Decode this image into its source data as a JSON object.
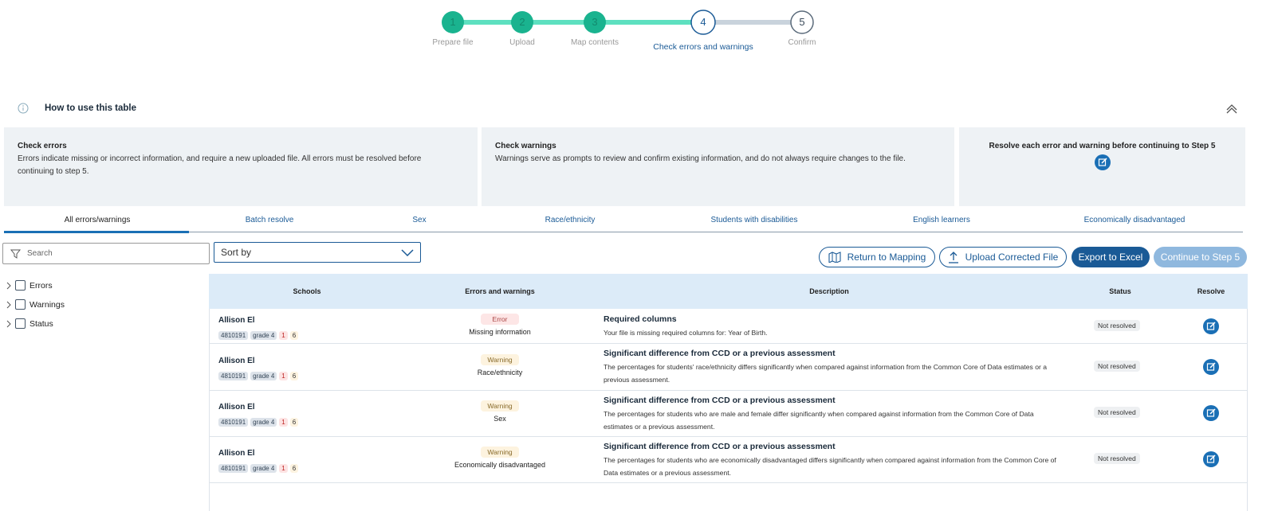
{
  "stepper": {
    "steps": [
      {
        "number": 1,
        "label": "Prepare file"
      },
      {
        "number": 2,
        "label": "Upload"
      },
      {
        "number": 3,
        "label": "Map contents"
      },
      {
        "number": 4,
        "label": "Check errors and warnings"
      },
      {
        "number": 5,
        "label": "Confirm"
      }
    ]
  },
  "help": {
    "title": "How to use this table",
    "cards": [
      {
        "title": "Check errors",
        "text": "Errors indicate missing or incorrect information, and require a new uploaded file. All errors must be resolved before continuing to step 5."
      },
      {
        "title": "Check warnings",
        "text": "Warnings serve as prompts to review and confirm existing information, and do not always require changes to the file."
      },
      {
        "title": "Resolve each error and warning before continuing to Step 5"
      }
    ]
  },
  "tabs": [
    "All errors/warnings",
    "Batch resolve",
    "Sex",
    "Race/ethnicity",
    "Students with disabilities",
    "English learners",
    "Economically disadvantaged"
  ],
  "search_placeholder": "Search",
  "sort_placeholder": "Sort by",
  "buttons": [
    "Return to Mapping",
    "Upload Corrected File",
    "Export to Excel",
    "Continue to Step 5"
  ],
  "filters": [
    "Errors",
    "Warnings",
    "Status"
  ],
  "table": {
    "headers": [
      "Schools",
      "Errors and warnings",
      "Description",
      "Status",
      "Resolve"
    ],
    "rows": [
      {
        "school": "Allison El",
        "id": "4810191",
        "grade": "grade 4",
        "errors": 1,
        "warnings": 6,
        "type": "Error",
        "category": "Missing information",
        "title": "Required columns",
        "description": "Your file is missing required columns for: Year of Birth.",
        "status": "Not resolved"
      },
      {
        "school": "Allison El",
        "id": "4810191",
        "grade": "grade 4",
        "errors": 1,
        "warnings": 6,
        "type": "Warning",
        "category": "Race/ethnicity",
        "title": "Significant difference from CCD or a previous assessment",
        "description": "The percentages for students' race/ethnicity differs significantly when compared against information from the Common Core of Data estimates or a previous assessment.",
        "status": "Not resolved"
      },
      {
        "school": "Allison El",
        "id": "4810191",
        "grade": "grade 4",
        "errors": 1,
        "warnings": 6,
        "type": "Warning",
        "category": "Sex",
        "title": "Significant difference from CCD or a previous assessment",
        "description": "The percentages for students who are male and female differ significantly when compared against information from the Common Core of Data estimates or a previous assessment.",
        "status": "Not resolved"
      },
      {
        "school": "Allison El",
        "id": "4810191",
        "grade": "grade 4",
        "errors": 1,
        "warnings": 6,
        "type": "Warning",
        "category": "Economically disadvantaged",
        "title": "Significant difference from CCD or a previous assessment",
        "description": "The percentages for students who are economically disadvantaged differs significantly when compared against information from the Common Core of Data estimates or a previous assessment.",
        "status": "Not resolved"
      }
    ]
  }
}
